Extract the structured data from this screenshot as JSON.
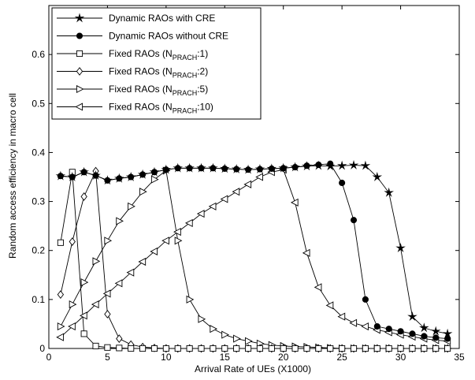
{
  "chart_data": {
    "type": "line",
    "xlabel": "Arrival Rate of UEs (X1000)",
    "ylabel": "Random access efficiency in macro cell",
    "x": [
      1,
      2,
      3,
      4,
      5,
      6,
      7,
      8,
      9,
      10,
      11,
      12,
      13,
      14,
      15,
      16,
      17,
      18,
      19,
      20,
      21,
      22,
      23,
      24,
      25,
      26,
      27,
      28,
      29,
      30,
      31,
      32,
      33,
      34
    ],
    "xlim": [
      0,
      35
    ],
    "xticks": [
      0,
      5,
      10,
      15,
      20,
      25,
      30,
      35
    ],
    "ylim": [
      0,
      0.7
    ],
    "yticks": [
      0,
      0.1,
      0.2,
      0.3,
      0.4,
      0.5,
      0.6
    ],
    "legend": "upper left",
    "grid": false,
    "series": [
      {
        "name": "Dynamic RAOs with CRE",
        "color": "#000000",
        "marker": "star",
        "values": [
          0.352,
          0.35,
          0.36,
          0.353,
          0.343,
          0.347,
          0.35,
          0.355,
          0.36,
          0.365,
          0.368,
          0.368,
          0.368,
          0.368,
          0.367,
          0.366,
          0.365,
          0.366,
          0.367,
          0.368,
          0.37,
          0.372,
          0.373,
          0.372,
          0.373,
          0.374,
          0.373,
          0.35,
          0.318,
          0.205,
          0.065,
          0.042,
          0.035,
          0.03
        ]
      },
      {
        "name": "Dynamic RAOs without CRE",
        "color": "#000000",
        "marker": "circle",
        "values": [
          0.352,
          0.35,
          0.36,
          0.353,
          0.343,
          0.347,
          0.35,
          0.355,
          0.36,
          0.365,
          0.368,
          0.368,
          0.368,
          0.368,
          0.367,
          0.366,
          0.365,
          0.366,
          0.367,
          0.368,
          0.37,
          0.373,
          0.375,
          0.377,
          0.338,
          0.262,
          0.1,
          0.045,
          0.04,
          0.035,
          0.03,
          0.025,
          0.022,
          0.02
        ]
      },
      {
        "name": "Fixed RAOs (NPRACH:1)",
        "color": "#000000",
        "marker": "square",
        "values": [
          0.216,
          0.36,
          0.03,
          0.005,
          0.002,
          0.001,
          0,
          0,
          0,
          0,
          0,
          0,
          0,
          0,
          0,
          0,
          0,
          0,
          0,
          0,
          0,
          0,
          0,
          0,
          0,
          0,
          0,
          0,
          0,
          0,
          0,
          0,
          0,
          0
        ]
      },
      {
        "name": "Fixed RAOs (NPRACH:2)",
        "color": "#000000",
        "marker": "diamond",
        "values": [
          0.11,
          0.218,
          0.31,
          0.362,
          0.07,
          0.02,
          0.008,
          0.003,
          0.001,
          0,
          0,
          0,
          0,
          0,
          0,
          0,
          0,
          0,
          0,
          0,
          0,
          0,
          0,
          0,
          0,
          0,
          0,
          0,
          0,
          0,
          0,
          0,
          0,
          0
        ]
      },
      {
        "name": "Fixed RAOs (NPRACH:5)",
        "color": "#000000",
        "marker": "tri-right",
        "values": [
          0.045,
          0.09,
          0.135,
          0.178,
          0.22,
          0.26,
          0.29,
          0.32,
          0.345,
          0.363,
          0.22,
          0.1,
          0.06,
          0.04,
          0.028,
          0.02,
          0.015,
          0.01,
          0.007,
          0.005,
          0.004,
          0.003,
          0.002,
          0.001,
          0,
          0,
          0,
          0,
          0,
          0,
          0,
          0,
          0,
          0
        ]
      },
      {
        "name": "Fixed RAOs (NPRACH:10)",
        "color": "#000000",
        "marker": "tri-left",
        "values": [
          0.023,
          0.045,
          0.067,
          0.09,
          0.112,
          0.133,
          0.155,
          0.177,
          0.198,
          0.22,
          0.238,
          0.256,
          0.275,
          0.29,
          0.305,
          0.32,
          0.335,
          0.35,
          0.36,
          0.365,
          0.298,
          0.195,
          0.125,
          0.088,
          0.065,
          0.052,
          0.045,
          0.038,
          0.033,
          0.028,
          0.024,
          0.02,
          0.017,
          0.015
        ]
      }
    ]
  }
}
